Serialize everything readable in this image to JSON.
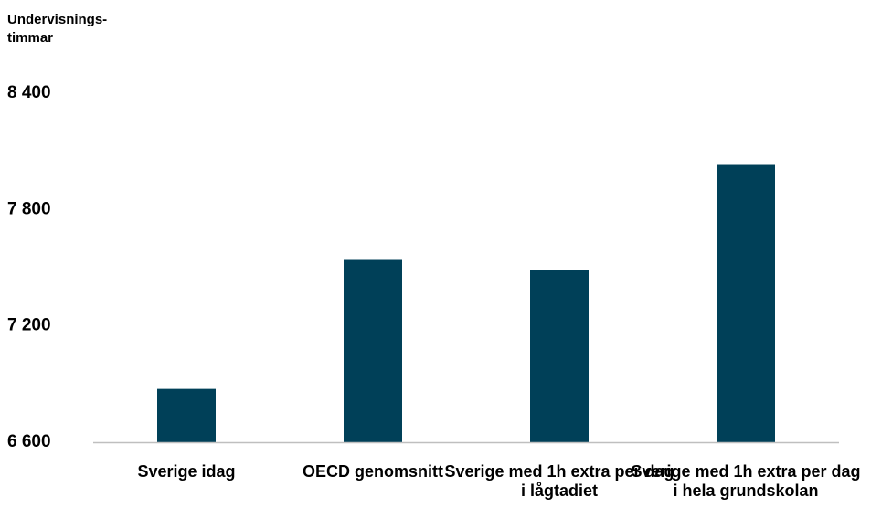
{
  "chart_data": {
    "type": "bar",
    "ylabel": "Undervisnings-\ntimmar",
    "ylim": [
      6600,
      8400
    ],
    "yticks": [
      "6 600",
      "7 200",
      "7 800",
      "8 400"
    ],
    "ytick_values": [
      6600,
      7200,
      7800,
      8400
    ],
    "categories": [
      "Sverige idag",
      "OECD genomsnitt",
      "Sverige med 1h extra per dag\ni lågtadiet",
      "Sverige med 1h extra per dag\ni hela grundskolan"
    ],
    "values": [
      6875,
      7540,
      7490,
      8030
    ],
    "colors": {
      "bar": "#004058",
      "axis": "#bfbfbf"
    },
    "grid": false,
    "legend": "none"
  }
}
